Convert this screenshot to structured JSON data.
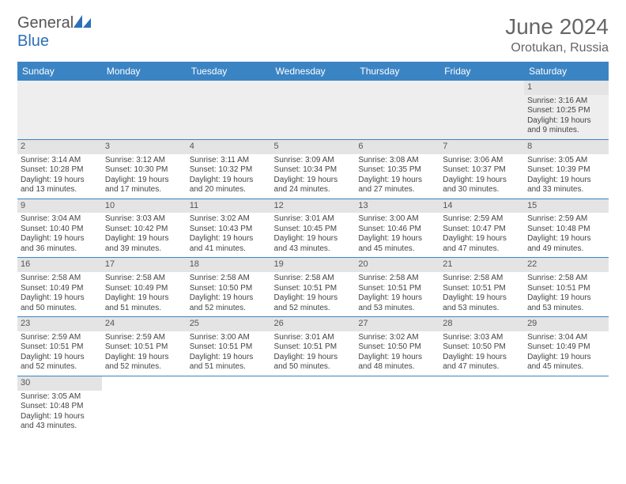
{
  "logo": {
    "general": "General",
    "blue": "Blue"
  },
  "title": {
    "month": "June 2024",
    "location": "Orotukan, Russia"
  },
  "colors": {
    "header_bg": "#3b84c4",
    "header_fg": "#ffffff",
    "daynum_bg": "#e4e4e4",
    "row1_bg": "#eeeeee",
    "rule": "#3b84c4",
    "text": "#444444",
    "title_color": "#666666",
    "logo_blue": "#2d6fb8"
  },
  "day_headers": [
    "Sunday",
    "Monday",
    "Tuesday",
    "Wednesday",
    "Thursday",
    "Friday",
    "Saturday"
  ],
  "weeks": [
    [
      null,
      null,
      null,
      null,
      null,
      null,
      {
        "n": "1",
        "sr": "Sunrise: 3:16 AM",
        "ss": "Sunset: 10:25 PM",
        "dl1": "Daylight: 19 hours",
        "dl2": "and 9 minutes."
      }
    ],
    [
      {
        "n": "2",
        "sr": "Sunrise: 3:14 AM",
        "ss": "Sunset: 10:28 PM",
        "dl1": "Daylight: 19 hours",
        "dl2": "and 13 minutes."
      },
      {
        "n": "3",
        "sr": "Sunrise: 3:12 AM",
        "ss": "Sunset: 10:30 PM",
        "dl1": "Daylight: 19 hours",
        "dl2": "and 17 minutes."
      },
      {
        "n": "4",
        "sr": "Sunrise: 3:11 AM",
        "ss": "Sunset: 10:32 PM",
        "dl1": "Daylight: 19 hours",
        "dl2": "and 20 minutes."
      },
      {
        "n": "5",
        "sr": "Sunrise: 3:09 AM",
        "ss": "Sunset: 10:34 PM",
        "dl1": "Daylight: 19 hours",
        "dl2": "and 24 minutes."
      },
      {
        "n": "6",
        "sr": "Sunrise: 3:08 AM",
        "ss": "Sunset: 10:35 PM",
        "dl1": "Daylight: 19 hours",
        "dl2": "and 27 minutes."
      },
      {
        "n": "7",
        "sr": "Sunrise: 3:06 AM",
        "ss": "Sunset: 10:37 PM",
        "dl1": "Daylight: 19 hours",
        "dl2": "and 30 minutes."
      },
      {
        "n": "8",
        "sr": "Sunrise: 3:05 AM",
        "ss": "Sunset: 10:39 PM",
        "dl1": "Daylight: 19 hours",
        "dl2": "and 33 minutes."
      }
    ],
    [
      {
        "n": "9",
        "sr": "Sunrise: 3:04 AM",
        "ss": "Sunset: 10:40 PM",
        "dl1": "Daylight: 19 hours",
        "dl2": "and 36 minutes."
      },
      {
        "n": "10",
        "sr": "Sunrise: 3:03 AM",
        "ss": "Sunset: 10:42 PM",
        "dl1": "Daylight: 19 hours",
        "dl2": "and 39 minutes."
      },
      {
        "n": "11",
        "sr": "Sunrise: 3:02 AM",
        "ss": "Sunset: 10:43 PM",
        "dl1": "Daylight: 19 hours",
        "dl2": "and 41 minutes."
      },
      {
        "n": "12",
        "sr": "Sunrise: 3:01 AM",
        "ss": "Sunset: 10:45 PM",
        "dl1": "Daylight: 19 hours",
        "dl2": "and 43 minutes."
      },
      {
        "n": "13",
        "sr": "Sunrise: 3:00 AM",
        "ss": "Sunset: 10:46 PM",
        "dl1": "Daylight: 19 hours",
        "dl2": "and 45 minutes."
      },
      {
        "n": "14",
        "sr": "Sunrise: 2:59 AM",
        "ss": "Sunset: 10:47 PM",
        "dl1": "Daylight: 19 hours",
        "dl2": "and 47 minutes."
      },
      {
        "n": "15",
        "sr": "Sunrise: 2:59 AM",
        "ss": "Sunset: 10:48 PM",
        "dl1": "Daylight: 19 hours",
        "dl2": "and 49 minutes."
      }
    ],
    [
      {
        "n": "16",
        "sr": "Sunrise: 2:58 AM",
        "ss": "Sunset: 10:49 PM",
        "dl1": "Daylight: 19 hours",
        "dl2": "and 50 minutes."
      },
      {
        "n": "17",
        "sr": "Sunrise: 2:58 AM",
        "ss": "Sunset: 10:49 PM",
        "dl1": "Daylight: 19 hours",
        "dl2": "and 51 minutes."
      },
      {
        "n": "18",
        "sr": "Sunrise: 2:58 AM",
        "ss": "Sunset: 10:50 PM",
        "dl1": "Daylight: 19 hours",
        "dl2": "and 52 minutes."
      },
      {
        "n": "19",
        "sr": "Sunrise: 2:58 AM",
        "ss": "Sunset: 10:51 PM",
        "dl1": "Daylight: 19 hours",
        "dl2": "and 52 minutes."
      },
      {
        "n": "20",
        "sr": "Sunrise: 2:58 AM",
        "ss": "Sunset: 10:51 PM",
        "dl1": "Daylight: 19 hours",
        "dl2": "and 53 minutes."
      },
      {
        "n": "21",
        "sr": "Sunrise: 2:58 AM",
        "ss": "Sunset: 10:51 PM",
        "dl1": "Daylight: 19 hours",
        "dl2": "and 53 minutes."
      },
      {
        "n": "22",
        "sr": "Sunrise: 2:58 AM",
        "ss": "Sunset: 10:51 PM",
        "dl1": "Daylight: 19 hours",
        "dl2": "and 53 minutes."
      }
    ],
    [
      {
        "n": "23",
        "sr": "Sunrise: 2:59 AM",
        "ss": "Sunset: 10:51 PM",
        "dl1": "Daylight: 19 hours",
        "dl2": "and 52 minutes."
      },
      {
        "n": "24",
        "sr": "Sunrise: 2:59 AM",
        "ss": "Sunset: 10:51 PM",
        "dl1": "Daylight: 19 hours",
        "dl2": "and 52 minutes."
      },
      {
        "n": "25",
        "sr": "Sunrise: 3:00 AM",
        "ss": "Sunset: 10:51 PM",
        "dl1": "Daylight: 19 hours",
        "dl2": "and 51 minutes."
      },
      {
        "n": "26",
        "sr": "Sunrise: 3:01 AM",
        "ss": "Sunset: 10:51 PM",
        "dl1": "Daylight: 19 hours",
        "dl2": "and 50 minutes."
      },
      {
        "n": "27",
        "sr": "Sunrise: 3:02 AM",
        "ss": "Sunset: 10:50 PM",
        "dl1": "Daylight: 19 hours",
        "dl2": "and 48 minutes."
      },
      {
        "n": "28",
        "sr": "Sunrise: 3:03 AM",
        "ss": "Sunset: 10:50 PM",
        "dl1": "Daylight: 19 hours",
        "dl2": "and 47 minutes."
      },
      {
        "n": "29",
        "sr": "Sunrise: 3:04 AM",
        "ss": "Sunset: 10:49 PM",
        "dl1": "Daylight: 19 hours",
        "dl2": "and 45 minutes."
      }
    ],
    [
      {
        "n": "30",
        "sr": "Sunrise: 3:05 AM",
        "ss": "Sunset: 10:48 PM",
        "dl1": "Daylight: 19 hours",
        "dl2": "and 43 minutes."
      },
      null,
      null,
      null,
      null,
      null,
      null
    ]
  ]
}
